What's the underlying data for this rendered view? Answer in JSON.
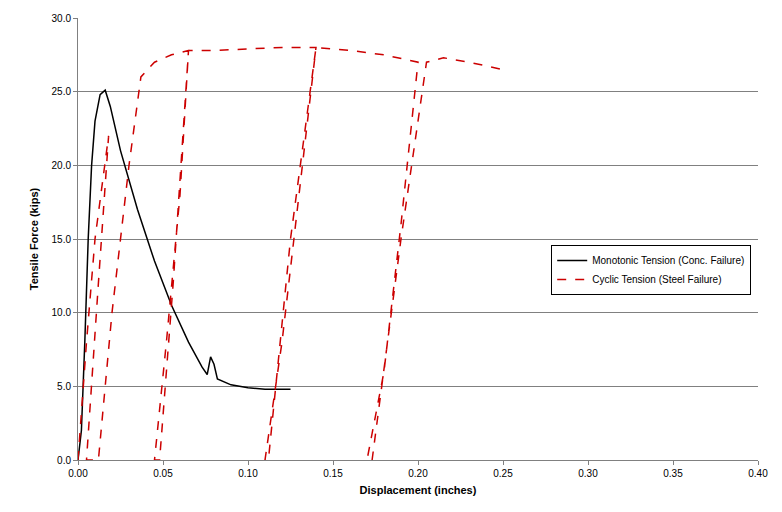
{
  "chart_data": {
    "type": "line",
    "x_label": "Displacement (inches)",
    "y_label": "Tensile Force (kips)",
    "xlim": [
      0,
      0.4
    ],
    "ylim": [
      0,
      30
    ],
    "xticks": [
      {
        "value": 0,
        "label": "0.00"
      },
      {
        "value": 0.05,
        "label": "0.05"
      },
      {
        "value": 0.1,
        "label": "0.10"
      },
      {
        "value": 0.15,
        "label": "0.15"
      },
      {
        "value": 0.2,
        "label": "0.20"
      },
      {
        "value": 0.25,
        "label": "0.25"
      },
      {
        "value": 0.3,
        "label": "0.30"
      },
      {
        "value": 0.35,
        "label": "0.35"
      },
      {
        "value": 0.4,
        "label": "0.40"
      }
    ],
    "yticks": [
      {
        "value": 0,
        "label": "0.0"
      },
      {
        "value": 5,
        "label": "5.0"
      },
      {
        "value": 10,
        "label": "10.0"
      },
      {
        "value": 15,
        "label": "15.0"
      },
      {
        "value": 20,
        "label": "20.0"
      },
      {
        "value": 25,
        "label": "25.0"
      },
      {
        "value": 30,
        "label": "30.0"
      }
    ],
    "grid": true,
    "legend": "right",
    "series": [
      {
        "name": "Monotonic Tension (Conc. Failure)",
        "color": "#000000",
        "line_style": "solid",
        "x": [
          0,
          0.002,
          0.004,
          0.006,
          0.008,
          0.01,
          0.013,
          0.016,
          0.019,
          0.025,
          0.035,
          0.045,
          0.055,
          0.065,
          0.073,
          0.076,
          0.078,
          0.08,
          0.082,
          0.09,
          0.1,
          0.11,
          0.125
        ],
        "values": [
          0,
          2,
          8,
          15,
          20,
          23,
          24.8,
          25.1,
          24,
          21,
          17,
          13.5,
          10.5,
          8,
          6.3,
          5.8,
          7,
          6.5,
          5.5,
          5.1,
          4.9,
          4.8,
          4.8
        ]
      },
      {
        "name": "Cyclic Tension (Steel Failure)",
        "color": "#cc0000",
        "line_style": "dashed",
        "x": [
          0,
          0.005,
          0.01,
          0.018,
          0.012,
          0.005,
          0.012,
          0.02,
          0.03,
          0.037,
          0.045,
          0.055,
          0.065,
          0.06,
          0.052,
          0.045,
          0.048,
          0.056,
          0.065,
          0.08,
          0.1,
          0.12,
          0.14,
          0.13,
          0.12,
          0.11,
          0.112,
          0.125,
          0.14,
          0.16,
          0.18,
          0.2,
          0.19,
          0.18,
          0.17,
          0.173,
          0.19,
          0.205,
          0.215,
          0.23,
          0.25
        ],
        "values": [
          0,
          8,
          15,
          22,
          12,
          0,
          0,
          10,
          20,
          26,
          27,
          27.5,
          27.8,
          18,
          8,
          0,
          0,
          12,
          27.8,
          27.8,
          27.9,
          28,
          28,
          18,
          8,
          0,
          0,
          15,
          28,
          27.8,
          27.5,
          27,
          16,
          6,
          0,
          0,
          15,
          27,
          27.3,
          27,
          26.5
        ]
      }
    ]
  }
}
